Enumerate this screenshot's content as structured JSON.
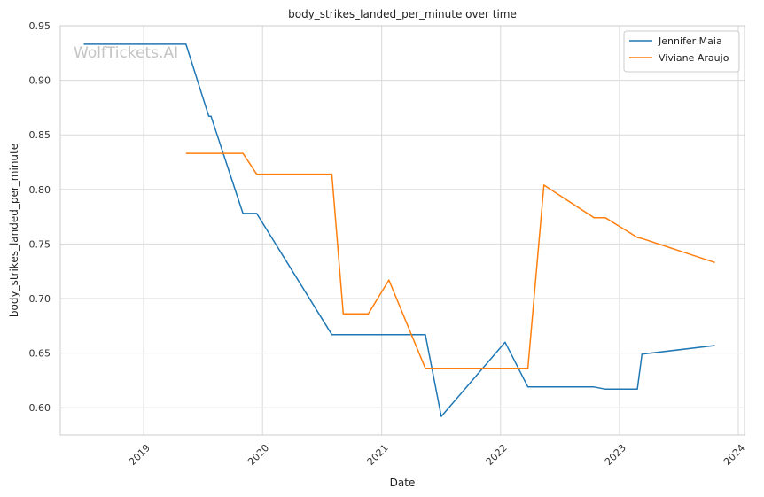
{
  "chart_data": {
    "type": "line",
    "title": "body_strikes_landed_per_minute over time",
    "xlabel": "Date",
    "ylabel": "body_strikes_landed_per_minute",
    "watermark": "WolfTickets.AI",
    "xlim": [
      "2018-04-20",
      "2024-01-20"
    ],
    "ylim": [
      0.575,
      0.95
    ],
    "x_ticks": [
      "2019-01-01",
      "2020-01-01",
      "2021-01-01",
      "2022-01-01",
      "2023-01-01",
      "2024-01-01"
    ],
    "x_tick_labels": [
      "2019",
      "2020",
      "2021",
      "2022",
      "2023",
      "2024"
    ],
    "y_ticks": [
      0.6,
      0.65,
      0.7,
      0.75,
      0.8,
      0.85,
      0.9,
      0.95
    ],
    "y_tick_labels": [
      "0.60",
      "0.65",
      "0.70",
      "0.75",
      "0.80",
      "0.85",
      "0.90",
      "0.95"
    ],
    "grid": true,
    "legend_position": "top-right",
    "series": [
      {
        "name": "Jennifer Maia",
        "color": "#1f77b4",
        "points": [
          [
            "2018-07-01",
            0.933
          ],
          [
            "2019-05-11",
            0.933
          ],
          [
            "2019-07-20",
            0.867
          ],
          [
            "2019-07-27",
            0.867
          ],
          [
            "2019-11-02",
            0.778
          ],
          [
            "2019-12-14",
            0.778
          ],
          [
            "2020-08-01",
            0.667
          ],
          [
            "2021-05-15",
            0.667
          ],
          [
            "2021-07-03",
            0.592
          ],
          [
            "2022-01-15",
            0.66
          ],
          [
            "2022-03-26",
            0.619
          ],
          [
            "2022-10-15",
            0.619
          ],
          [
            "2022-11-19",
            0.617
          ],
          [
            "2023-02-25",
            0.617
          ],
          [
            "2023-03-11",
            0.649
          ],
          [
            "2023-10-21",
            0.657
          ]
        ]
      },
      {
        "name": "Viviane Araujo",
        "color": "#ff7f0e",
        "points": [
          [
            "2019-05-11",
            0.833
          ],
          [
            "2019-11-02",
            0.833
          ],
          [
            "2019-12-14",
            0.814
          ],
          [
            "2020-08-01",
            0.814
          ],
          [
            "2020-09-05",
            0.686
          ],
          [
            "2020-11-21",
            0.686
          ],
          [
            "2021-01-23",
            0.717
          ],
          [
            "2021-05-15",
            0.636
          ],
          [
            "2022-03-26",
            0.636
          ],
          [
            "2022-05-14",
            0.804
          ],
          [
            "2022-10-15",
            0.774
          ],
          [
            "2022-11-19",
            0.774
          ],
          [
            "2023-02-25",
            0.756
          ],
          [
            "2023-03-11",
            0.755
          ],
          [
            "2023-10-21",
            0.733
          ]
        ]
      }
    ]
  }
}
